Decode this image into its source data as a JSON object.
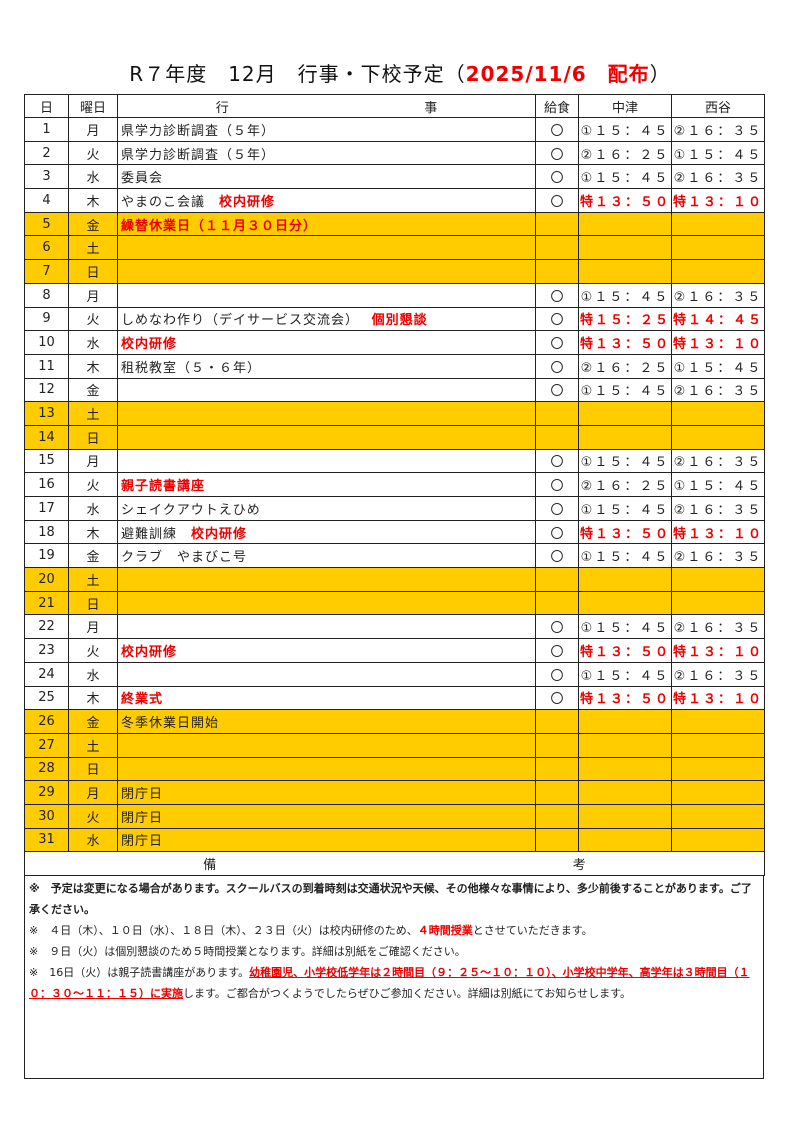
{
  "title": {
    "main": "R７年度　12月　行事・下校予定（",
    "red": "2025/11/6　配布",
    "close": "）"
  },
  "headers": {
    "day": "日",
    "weekday": "曜日",
    "event_left": "行",
    "event_right": "事",
    "lunch": "給食",
    "nakatsu": "中津",
    "nishidani": "西谷"
  },
  "holiday_color": "#ffcc00",
  "rows": [
    {
      "d": "1",
      "w": "月",
      "e": "県学力診断調査（５年）",
      "er": "",
      "l": "〇",
      "n": "①１５：４５",
      "s": "②１６：３５",
      "hol": false,
      "sp": false
    },
    {
      "d": "2",
      "w": "火",
      "e": "県学力診断調査（５年）",
      "er": "",
      "l": "〇",
      "n": "②１６：２５",
      "s": "①１５：４５",
      "hol": false,
      "sp": false
    },
    {
      "d": "3",
      "w": "水",
      "e": "委員会",
      "er": "",
      "l": "〇",
      "n": "①１５：４５",
      "s": "②１６：３５",
      "hol": false,
      "sp": false
    },
    {
      "d": "4",
      "w": "木",
      "e": "やまのこ会議　",
      "er": "校内研修",
      "l": "〇",
      "n": "特１３：５０",
      "s": "特１３：１０",
      "hol": false,
      "sp": true
    },
    {
      "d": "5",
      "w": "金",
      "e": "",
      "er": "繰替休業日（１１月３０日分）",
      "l": "",
      "n": "",
      "s": "",
      "hol": true,
      "sp": false
    },
    {
      "d": "6",
      "w": "土",
      "e": "",
      "er": "",
      "l": "",
      "n": "",
      "s": "",
      "hol": true,
      "sp": false
    },
    {
      "d": "7",
      "w": "日",
      "e": "",
      "er": "",
      "l": "",
      "n": "",
      "s": "",
      "hol": true,
      "sp": false
    },
    {
      "d": "8",
      "w": "月",
      "e": "",
      "er": "",
      "l": "〇",
      "n": "①１５：４５",
      "s": "②１６：３５",
      "hol": false,
      "sp": false
    },
    {
      "d": "9",
      "w": "火",
      "e": "しめなわ作り（デイサービス交流会）　 ",
      "er": "個別懇談",
      "l": "〇",
      "n": "特１５：２５",
      "s": "特１４：４５",
      "hol": false,
      "sp": true
    },
    {
      "d": "10",
      "w": "水",
      "e": "",
      "er": "校内研修",
      "l": "〇",
      "n": "特１３：５０",
      "s": "特１３：１０",
      "hol": false,
      "sp": true
    },
    {
      "d": "11",
      "w": "木",
      "e": "租税教室（５・６年）",
      "er": "",
      "l": "〇",
      "n": "②１６：２５",
      "s": "①１５：４５",
      "hol": false,
      "sp": false
    },
    {
      "d": "12",
      "w": "金",
      "e": "",
      "er": "",
      "l": "〇",
      "n": "①１５：４５",
      "s": "②１６：３５",
      "hol": false,
      "sp": false
    },
    {
      "d": "13",
      "w": "土",
      "e": "",
      "er": "",
      "l": "",
      "n": "",
      "s": "",
      "hol": true,
      "sp": false
    },
    {
      "d": "14",
      "w": "日",
      "e": "",
      "er": "",
      "l": "",
      "n": "",
      "s": "",
      "hol": true,
      "sp": false
    },
    {
      "d": "15",
      "w": "月",
      "e": "",
      "er": "",
      "l": "〇",
      "n": "①１５：４５",
      "s": "②１６：３５",
      "hol": false,
      "sp": false
    },
    {
      "d": "16",
      "w": "火",
      "e": "",
      "er": "親子読書講座",
      "l": "〇",
      "n": "②１６：２５",
      "s": "①１５：４５",
      "hol": false,
      "sp": false
    },
    {
      "d": "17",
      "w": "水",
      "e": "シェイクアウトえひめ",
      "er": "",
      "l": "〇",
      "n": "①１５：４５",
      "s": "②１６：３５",
      "hol": false,
      "sp": false
    },
    {
      "d": "18",
      "w": "木",
      "e": "避難訓練　",
      "er": "校内研修",
      "l": "〇",
      "n": "特１３：５０",
      "s": "特１３：１０",
      "hol": false,
      "sp": true
    },
    {
      "d": "19",
      "w": "金",
      "e": "クラブ　やまびこ号",
      "er": "",
      "l": "〇",
      "n": "①１５：４５",
      "s": "②１６：３５",
      "hol": false,
      "sp": false
    },
    {
      "d": "20",
      "w": "土",
      "e": "",
      "er": "",
      "l": "",
      "n": "",
      "s": "",
      "hol": true,
      "sp": false
    },
    {
      "d": "21",
      "w": "日",
      "e": "",
      "er": "",
      "l": "",
      "n": "",
      "s": "",
      "hol": true,
      "sp": false
    },
    {
      "d": "22",
      "w": "月",
      "e": "",
      "er": "",
      "l": "〇",
      "n": "①１５：４５",
      "s": "②１６：３５",
      "hol": false,
      "sp": false
    },
    {
      "d": "23",
      "w": "火",
      "e": "",
      "er": "校内研修",
      "l": "〇",
      "n": "特１３：５０",
      "s": "特１３：１０",
      "hol": false,
      "sp": true
    },
    {
      "d": "24",
      "w": "水",
      "e": "",
      "er": "",
      "l": "〇",
      "n": "①１５：４５",
      "s": "②１６：３５",
      "hol": false,
      "sp": false
    },
    {
      "d": "25",
      "w": "木",
      "e": "",
      "er": "終業式",
      "l": "〇",
      "n": "特１３：５０",
      "s": "特１３：１０",
      "hol": false,
      "sp": true
    },
    {
      "d": "26",
      "w": "金",
      "e": "冬季休業日開始",
      "er": "",
      "l": "",
      "n": "",
      "s": "",
      "hol": true,
      "sp": false
    },
    {
      "d": "27",
      "w": "土",
      "e": "",
      "er": "",
      "l": "",
      "n": "",
      "s": "",
      "hol": true,
      "sp": false
    },
    {
      "d": "28",
      "w": "日",
      "e": "",
      "er": "",
      "l": "",
      "n": "",
      "s": "",
      "hol": true,
      "sp": false
    },
    {
      "d": "29",
      "w": "月",
      "e": "閉庁日",
      "er": "",
      "l": "",
      "n": "",
      "s": "",
      "hol": true,
      "sp": false
    },
    {
      "d": "30",
      "w": "火",
      "e": "閉庁日",
      "er": "",
      "l": "",
      "n": "",
      "s": "",
      "hol": true,
      "sp": false
    },
    {
      "d": "31",
      "w": "水",
      "e": "閉庁日",
      "er": "",
      "l": "",
      "n": "",
      "s": "",
      "hol": true,
      "sp": false
    }
  ],
  "remarks": {
    "left": "備",
    "right": "考"
  },
  "notes": [
    [
      {
        "t": "※　予定は変更になる場合があります。スクールバスの到着時刻は交通状況や天候、その他様々な事情により、多少前後することがあります。ご了承ください。",
        "s": "b"
      }
    ],
    [
      {
        "t": "※　４日（木）、１０日（水）、１８日（木）、２３日（火）は校内研修のため、",
        "s": ""
      },
      {
        "t": "４時間授業",
        "s": "r"
      },
      {
        "t": "とさせていただきます。",
        "s": ""
      }
    ],
    [
      {
        "t": "※　９日（火）は個別懇談のため５時間授業となります。詳細は別紙をご確認ください。",
        "s": ""
      }
    ],
    [
      {
        "t": "※　16日（火）は親子読書講座があります。",
        "s": ""
      },
      {
        "t": "幼稚園児、小学校低学年は２時間目（９：２５～１０：１０）、小学校中学年、高学年は３時間目（１０：３０～１１：１５）に実施",
        "s": "ru"
      },
      {
        "t": "します。ご都合がつくようでしたらぜひご参加ください。詳細は別紙にてお知らせします。",
        "s": ""
      }
    ]
  ]
}
